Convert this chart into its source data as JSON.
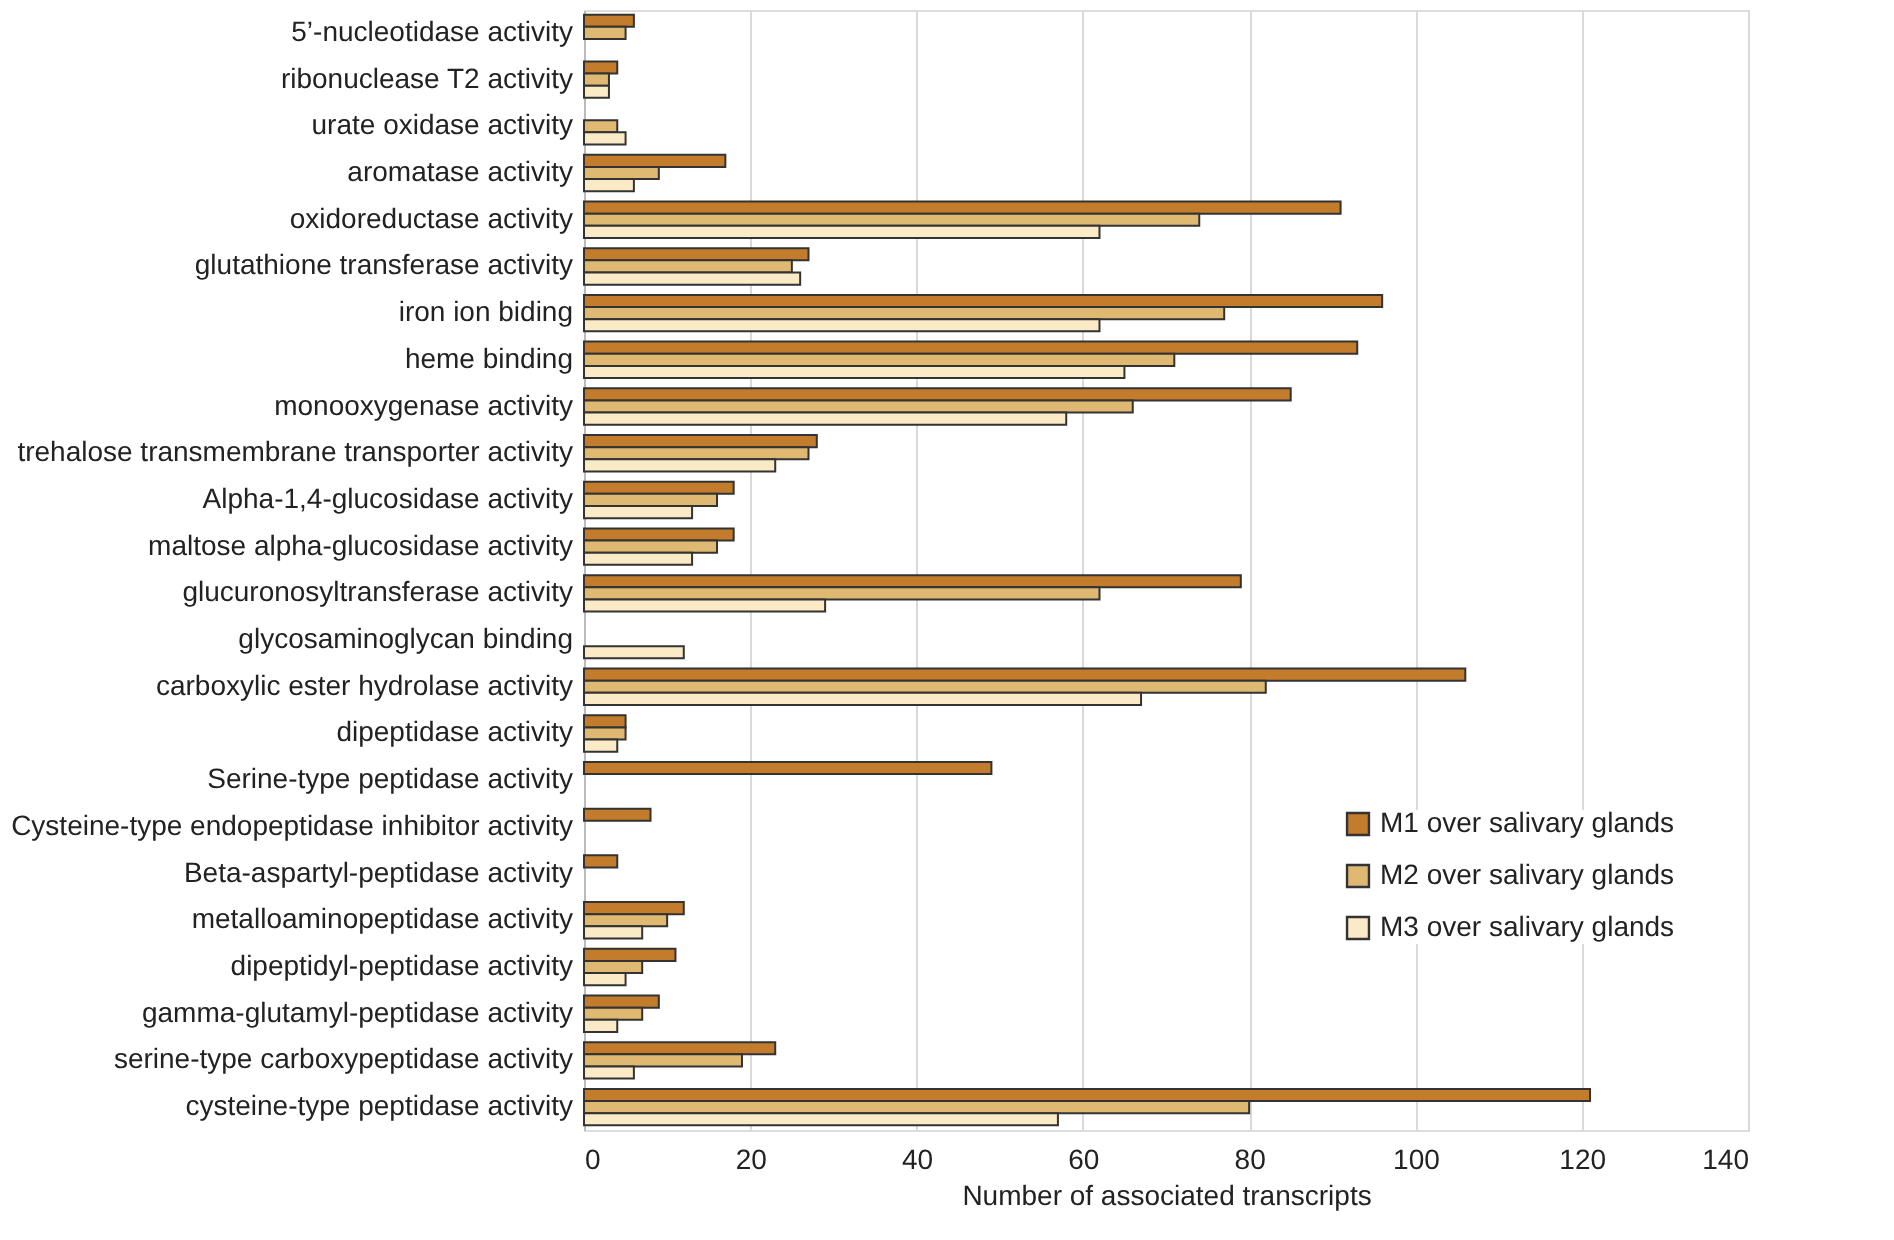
{
  "chart_data": {
    "type": "bar",
    "orientation": "horizontal",
    "xlabel": "Number of associated transcripts",
    "categories": [
      "5’-nucleotidase activity",
      "ribonuclease T2 activity",
      "urate oxidase activity",
      "aromatase activity",
      "oxidoreductase activity",
      "glutathione transferase activity",
      "iron ion biding",
      "heme binding",
      "monooxygenase activity",
      "trehalose transmembrane transporter activity",
      "Alpha-1,4-glucosidase activity",
      "maltose alpha-glucosidase activity",
      "glucuronosyltransferase activity",
      "glycosaminoglycan binding",
      "carboxylic ester hydrolase activity",
      "dipeptidase activity",
      "Serine-type peptidase activity",
      "Cysteine-type endopeptidase inhibitor activity",
      "Beta-aspartyl-peptidase activity",
      "metalloaminopeptidase activity",
      "dipeptidyl-peptidase activity",
      "gamma-glutamyl-peptidase activity",
      "serine-type carboxypeptidase activity",
      "cysteine-type peptidase activity"
    ],
    "series": [
      {
        "name": "M1 over salivary glands",
        "color": "#c27c2c",
        "values": [
          6,
          4,
          null,
          17,
          91,
          27,
          96,
          93,
          85,
          28,
          18,
          18,
          79,
          null,
          106,
          5,
          49,
          8,
          4,
          12,
          11,
          9,
          23,
          121
        ]
      },
      {
        "name": "M2 over salivary glands",
        "color": "#dfb872",
        "values": [
          5,
          3,
          4,
          9,
          74,
          25,
          77,
          71,
          66,
          27,
          16,
          16,
          62,
          null,
          82,
          5,
          null,
          null,
          null,
          10,
          7,
          7,
          19,
          80
        ]
      },
      {
        "name": "M3 over salivary glands",
        "color": "#fbeac6",
        "values": [
          null,
          3,
          5,
          6,
          62,
          26,
          62,
          65,
          58,
          23,
          13,
          13,
          29,
          12,
          67,
          4,
          null,
          null,
          null,
          7,
          5,
          4,
          6,
          57
        ]
      }
    ],
    "xlim": [
      0,
      140
    ],
    "xticks": [
      0,
      20,
      40,
      60,
      80,
      100,
      120,
      140
    ],
    "grid": "x",
    "legend": "bottom right"
  }
}
